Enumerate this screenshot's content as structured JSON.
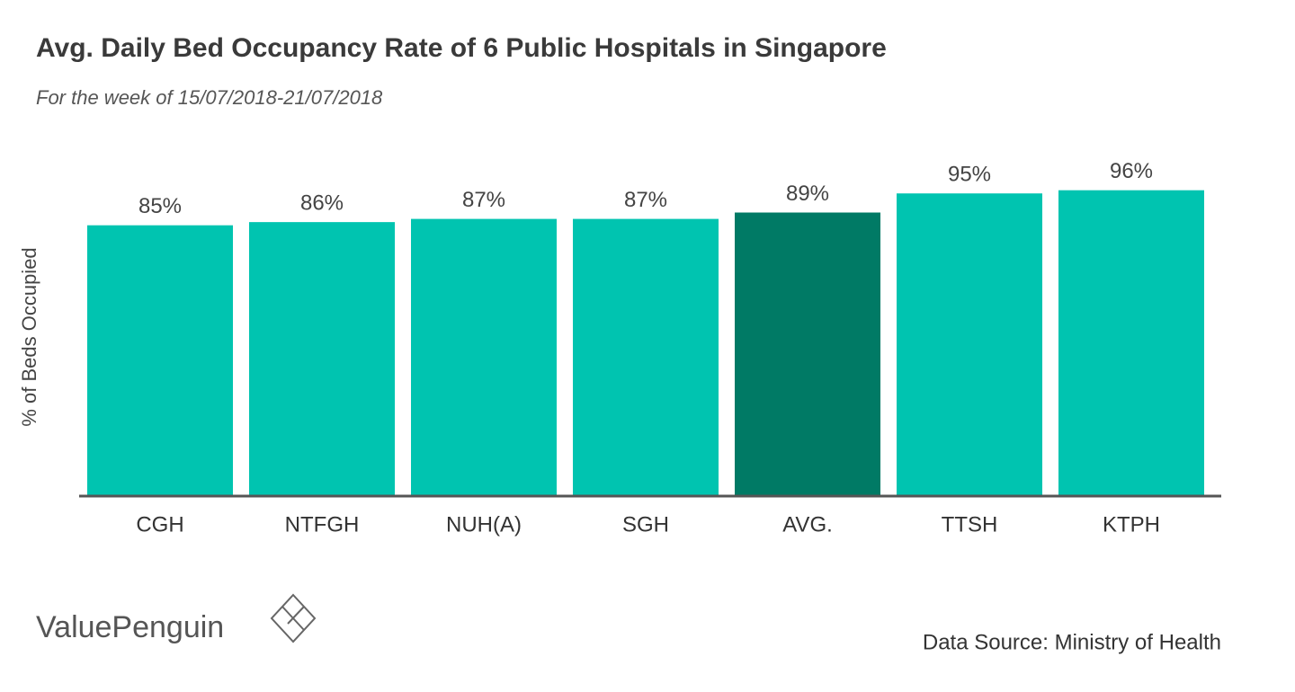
{
  "chart_data": {
    "type": "bar",
    "title": "Avg. Daily Bed Occupancy Rate of 6 Public Hospitals in Singapore",
    "subtitle": "For the week of 15/07/2018-21/07/2018",
    "y_label": "% of Beds Occupied",
    "categories": [
      "CGH",
      "NTFGH",
      "NUH(A)",
      "SGH",
      "AVG.",
      "TTSH",
      "KTPH"
    ],
    "values": [
      85,
      86,
      87,
      87,
      89,
      95,
      96
    ],
    "value_labels": [
      "85%",
      "86%",
      "87%",
      "87%",
      "89%",
      "95%",
      "96%"
    ],
    "colors": [
      "#00c4b0",
      "#00c4b0",
      "#00c4b0",
      "#00c4b0",
      "#007a65",
      "#00c4b0",
      "#00c4b0"
    ],
    "ylim": [
      0,
      100
    ],
    "grid": false,
    "source": "Data Source: Ministry of Health",
    "brand": "ValuePenguin"
  }
}
